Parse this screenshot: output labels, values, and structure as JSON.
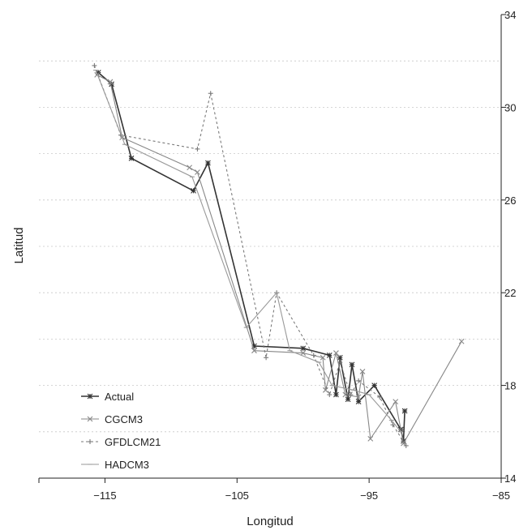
{
  "chart_data": {
    "type": "line",
    "title": "",
    "xlabel": "Longitud",
    "ylabel": "Latitud",
    "xlim": [
      -120,
      -85
    ],
    "ylim": [
      14,
      34
    ],
    "x_ticks": [
      -115,
      -105,
      -95,
      -85
    ],
    "y_ticks": [
      14,
      18,
      22,
      26,
      30,
      34
    ],
    "x_tick_labels": [
      "−115",
      "−105",
      "−95",
      "−85"
    ],
    "y_tick_labels": [
      "14",
      "18",
      "22",
      "26",
      "30",
      "34"
    ],
    "grid": "horizontal dotted",
    "legend": "bottom-left inside",
    "series": [
      {
        "name": "Actual",
        "color": "#333333",
        "dash": "solid",
        "marker": "asterisk",
        "points": [
          [
            -115.5,
            31.5
          ],
          [
            -114.5,
            31.0
          ],
          [
            -113.0,
            27.8
          ],
          [
            -108.3,
            26.4
          ],
          [
            -107.2,
            27.6
          ],
          [
            -103.7,
            19.7
          ],
          [
            -100.0,
            19.6
          ],
          [
            -98.0,
            19.3
          ],
          [
            -97.5,
            17.6
          ],
          [
            -97.2,
            19.2
          ],
          [
            -96.6,
            17.4
          ],
          [
            -96.3,
            18.9
          ],
          [
            -95.8,
            17.3
          ],
          [
            -94.6,
            18.0
          ],
          [
            -92.6,
            16.1
          ],
          [
            -92.4,
            15.6
          ],
          [
            -92.3,
            16.9
          ]
        ]
      },
      {
        "name": "CGCM3",
        "color": "#888888",
        "dash": "solid",
        "marker": "x",
        "points": [
          [
            -115.6,
            31.4
          ],
          [
            -114.6,
            31.1
          ],
          [
            -113.7,
            28.7
          ],
          [
            -108.6,
            27.4
          ],
          [
            -108.0,
            27.2
          ],
          [
            -103.7,
            19.5
          ],
          [
            -100.0,
            19.4
          ],
          [
            -98.5,
            19.2
          ],
          [
            -98.3,
            17.8
          ],
          [
            -97.5,
            19.4
          ],
          [
            -96.8,
            17.6
          ],
          [
            -95.8,
            17.5
          ],
          [
            -95.5,
            18.6
          ],
          [
            -94.9,
            15.7
          ],
          [
            -93.0,
            17.3
          ],
          [
            -92.4,
            15.5
          ],
          [
            -88.0,
            19.9
          ]
        ]
      },
      {
        "name": "GFDLCM21",
        "color": "#7a7a7a",
        "dash": "3,3",
        "marker": "plus",
        "points": [
          [
            -115.8,
            31.8
          ],
          [
            -113.8,
            28.8
          ],
          [
            -108.0,
            28.2
          ],
          [
            -107.0,
            30.6
          ],
          [
            -102.8,
            19.2
          ],
          [
            -102.0,
            22.0
          ],
          [
            -99.2,
            19.3
          ],
          [
            -98.0,
            17.6
          ],
          [
            -97.2,
            19.0
          ],
          [
            -96.4,
            17.6
          ],
          [
            -95.8,
            18.2
          ],
          [
            -94.2,
            17.5
          ],
          [
            -93.2,
            16.3
          ],
          [
            -92.2,
            15.4
          ]
        ]
      },
      {
        "name": "HADCM3",
        "color": "#999999",
        "dash": "solid",
        "marker": "dash",
        "points": [
          [
            -115.7,
            31.6
          ],
          [
            -113.5,
            28.4
          ],
          [
            -108.4,
            27.0
          ],
          [
            -104.3,
            20.5
          ],
          [
            -102.0,
            22.0
          ],
          [
            -101.0,
            19.5
          ],
          [
            -98.8,
            19.0
          ],
          [
            -97.8,
            18.0
          ],
          [
            -96.2,
            17.8
          ],
          [
            -95.0,
            17.6
          ],
          [
            -93.3,
            16.5
          ],
          [
            -92.6,
            16.0
          ]
        ]
      }
    ]
  }
}
